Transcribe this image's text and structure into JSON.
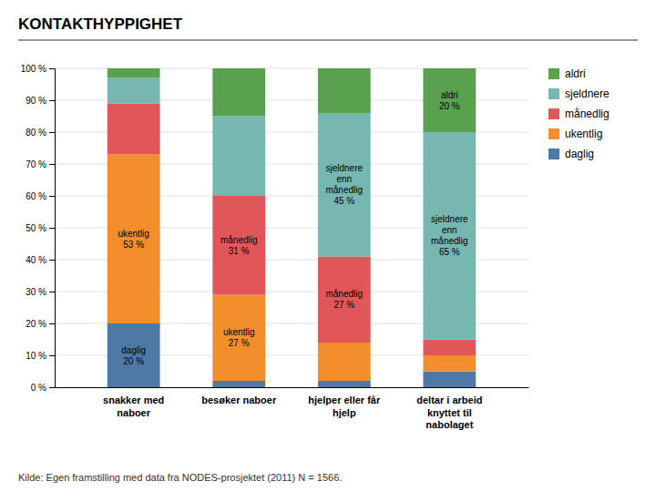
{
  "chart_data": {
    "type": "bar",
    "stacked": true,
    "title": "KONTAKTHYPPIGHET",
    "source": "Kilde: Egen framstilling med data fra NODES-prosjektet (2011) N = 1566.",
    "categories": [
      "snakker med\nnaboer",
      "besøker naboer",
      "hjelper eller får\nhjelp",
      "deltar i arbeid\nknyttet til\nnabolaget"
    ],
    "series": [
      {
        "name": "daglig",
        "values": [
          20,
          2,
          2,
          5
        ],
        "value_labels": [
          "daglig\n20 %",
          null,
          null,
          null
        ]
      },
      {
        "name": "ukentlig",
        "values": [
          53,
          27,
          12,
          5
        ],
        "value_labels": [
          "ukentlig\n53 %",
          "ukentlig\n27 %",
          null,
          null
        ]
      },
      {
        "name": "månedlig",
        "values": [
          16,
          31,
          27,
          5
        ],
        "value_labels": [
          null,
          "månedlig\n31 %",
          "månedlig\n27 %",
          null
        ]
      },
      {
        "name": "sjeldnere",
        "values": [
          8,
          25,
          45,
          65
        ],
        "value_labels": [
          null,
          null,
          "sjeldnere\nenn\nmånedlig\n45 %",
          "sjeldnere\nenn\nmånedlig\n65 %"
        ]
      },
      {
        "name": "aldri",
        "values": [
          3,
          15,
          14,
          20
        ],
        "value_labels": [
          null,
          null,
          null,
          "aldri\n20 %"
        ]
      }
    ],
    "data_labels": true,
    "ylim": [
      0,
      100
    ],
    "yticks": [
      {
        "value": 0,
        "label": "0 %"
      },
      {
        "value": 10,
        "label": "10 %"
      },
      {
        "value": 20,
        "label": "20 %"
      },
      {
        "value": 30,
        "label": "30 %"
      },
      {
        "value": 40,
        "label": "40 %"
      },
      {
        "value": 50,
        "label": "50 %"
      },
      {
        "value": 60,
        "label": "60 %"
      },
      {
        "value": 70,
        "label": "70 %"
      },
      {
        "value": 80,
        "label": "80 %"
      },
      {
        "value": 90,
        "label": "90 %"
      },
      {
        "value": 100,
        "label": "100 %"
      }
    ],
    "grid": true,
    "legend": "right"
  }
}
